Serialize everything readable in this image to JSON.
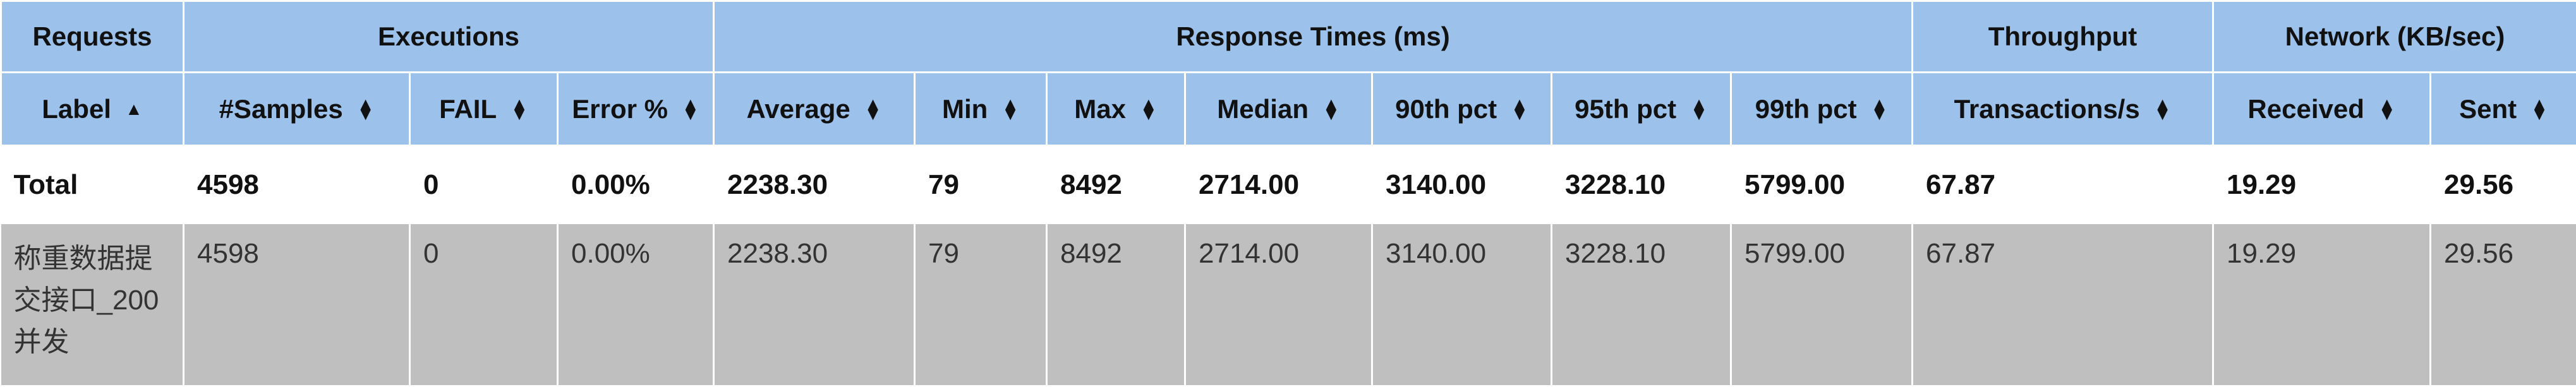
{
  "groups": [
    {
      "label": "Requests"
    },
    {
      "label": "Executions"
    },
    {
      "label": "Response Times (ms)"
    },
    {
      "label": "Throughput"
    },
    {
      "label": "Network (KB/sec)"
    }
  ],
  "columns": [
    {
      "label": "Label",
      "sort": "asc"
    },
    {
      "label": "#Samples",
      "sort": "both"
    },
    {
      "label": "FAIL",
      "sort": "both"
    },
    {
      "label": "Error %",
      "sort": "both"
    },
    {
      "label": "Average",
      "sort": "both"
    },
    {
      "label": "Min",
      "sort": "both"
    },
    {
      "label": "Max",
      "sort": "both"
    },
    {
      "label": "Median",
      "sort": "both"
    },
    {
      "label": "90th pct",
      "sort": "both"
    },
    {
      "label": "95th pct",
      "sort": "both"
    },
    {
      "label": "99th pct",
      "sort": "both"
    },
    {
      "label": "Transactions/s",
      "sort": "both"
    },
    {
      "label": "Received",
      "sort": "both"
    },
    {
      "label": "Sent",
      "sort": "both"
    }
  ],
  "total": [
    "Total",
    "4598",
    "0",
    "0.00%",
    "2238.30",
    "79",
    "8492",
    "2714.00",
    "3140.00",
    "3228.10",
    "5799.00",
    "67.87",
    "19.29",
    "29.56"
  ],
  "rows": [
    [
      "称重数据提交接口_200并发",
      "4598",
      "0",
      "0.00%",
      "2238.30",
      "79",
      "8492",
      "2714.00",
      "3140.00",
      "3228.10",
      "5799.00",
      "67.87",
      "19.29",
      "29.56"
    ]
  ],
  "colors": {
    "header_bg": "#9cc1ea",
    "row_bg": "#bfbfbf",
    "total_bg": "#ffffff"
  }
}
